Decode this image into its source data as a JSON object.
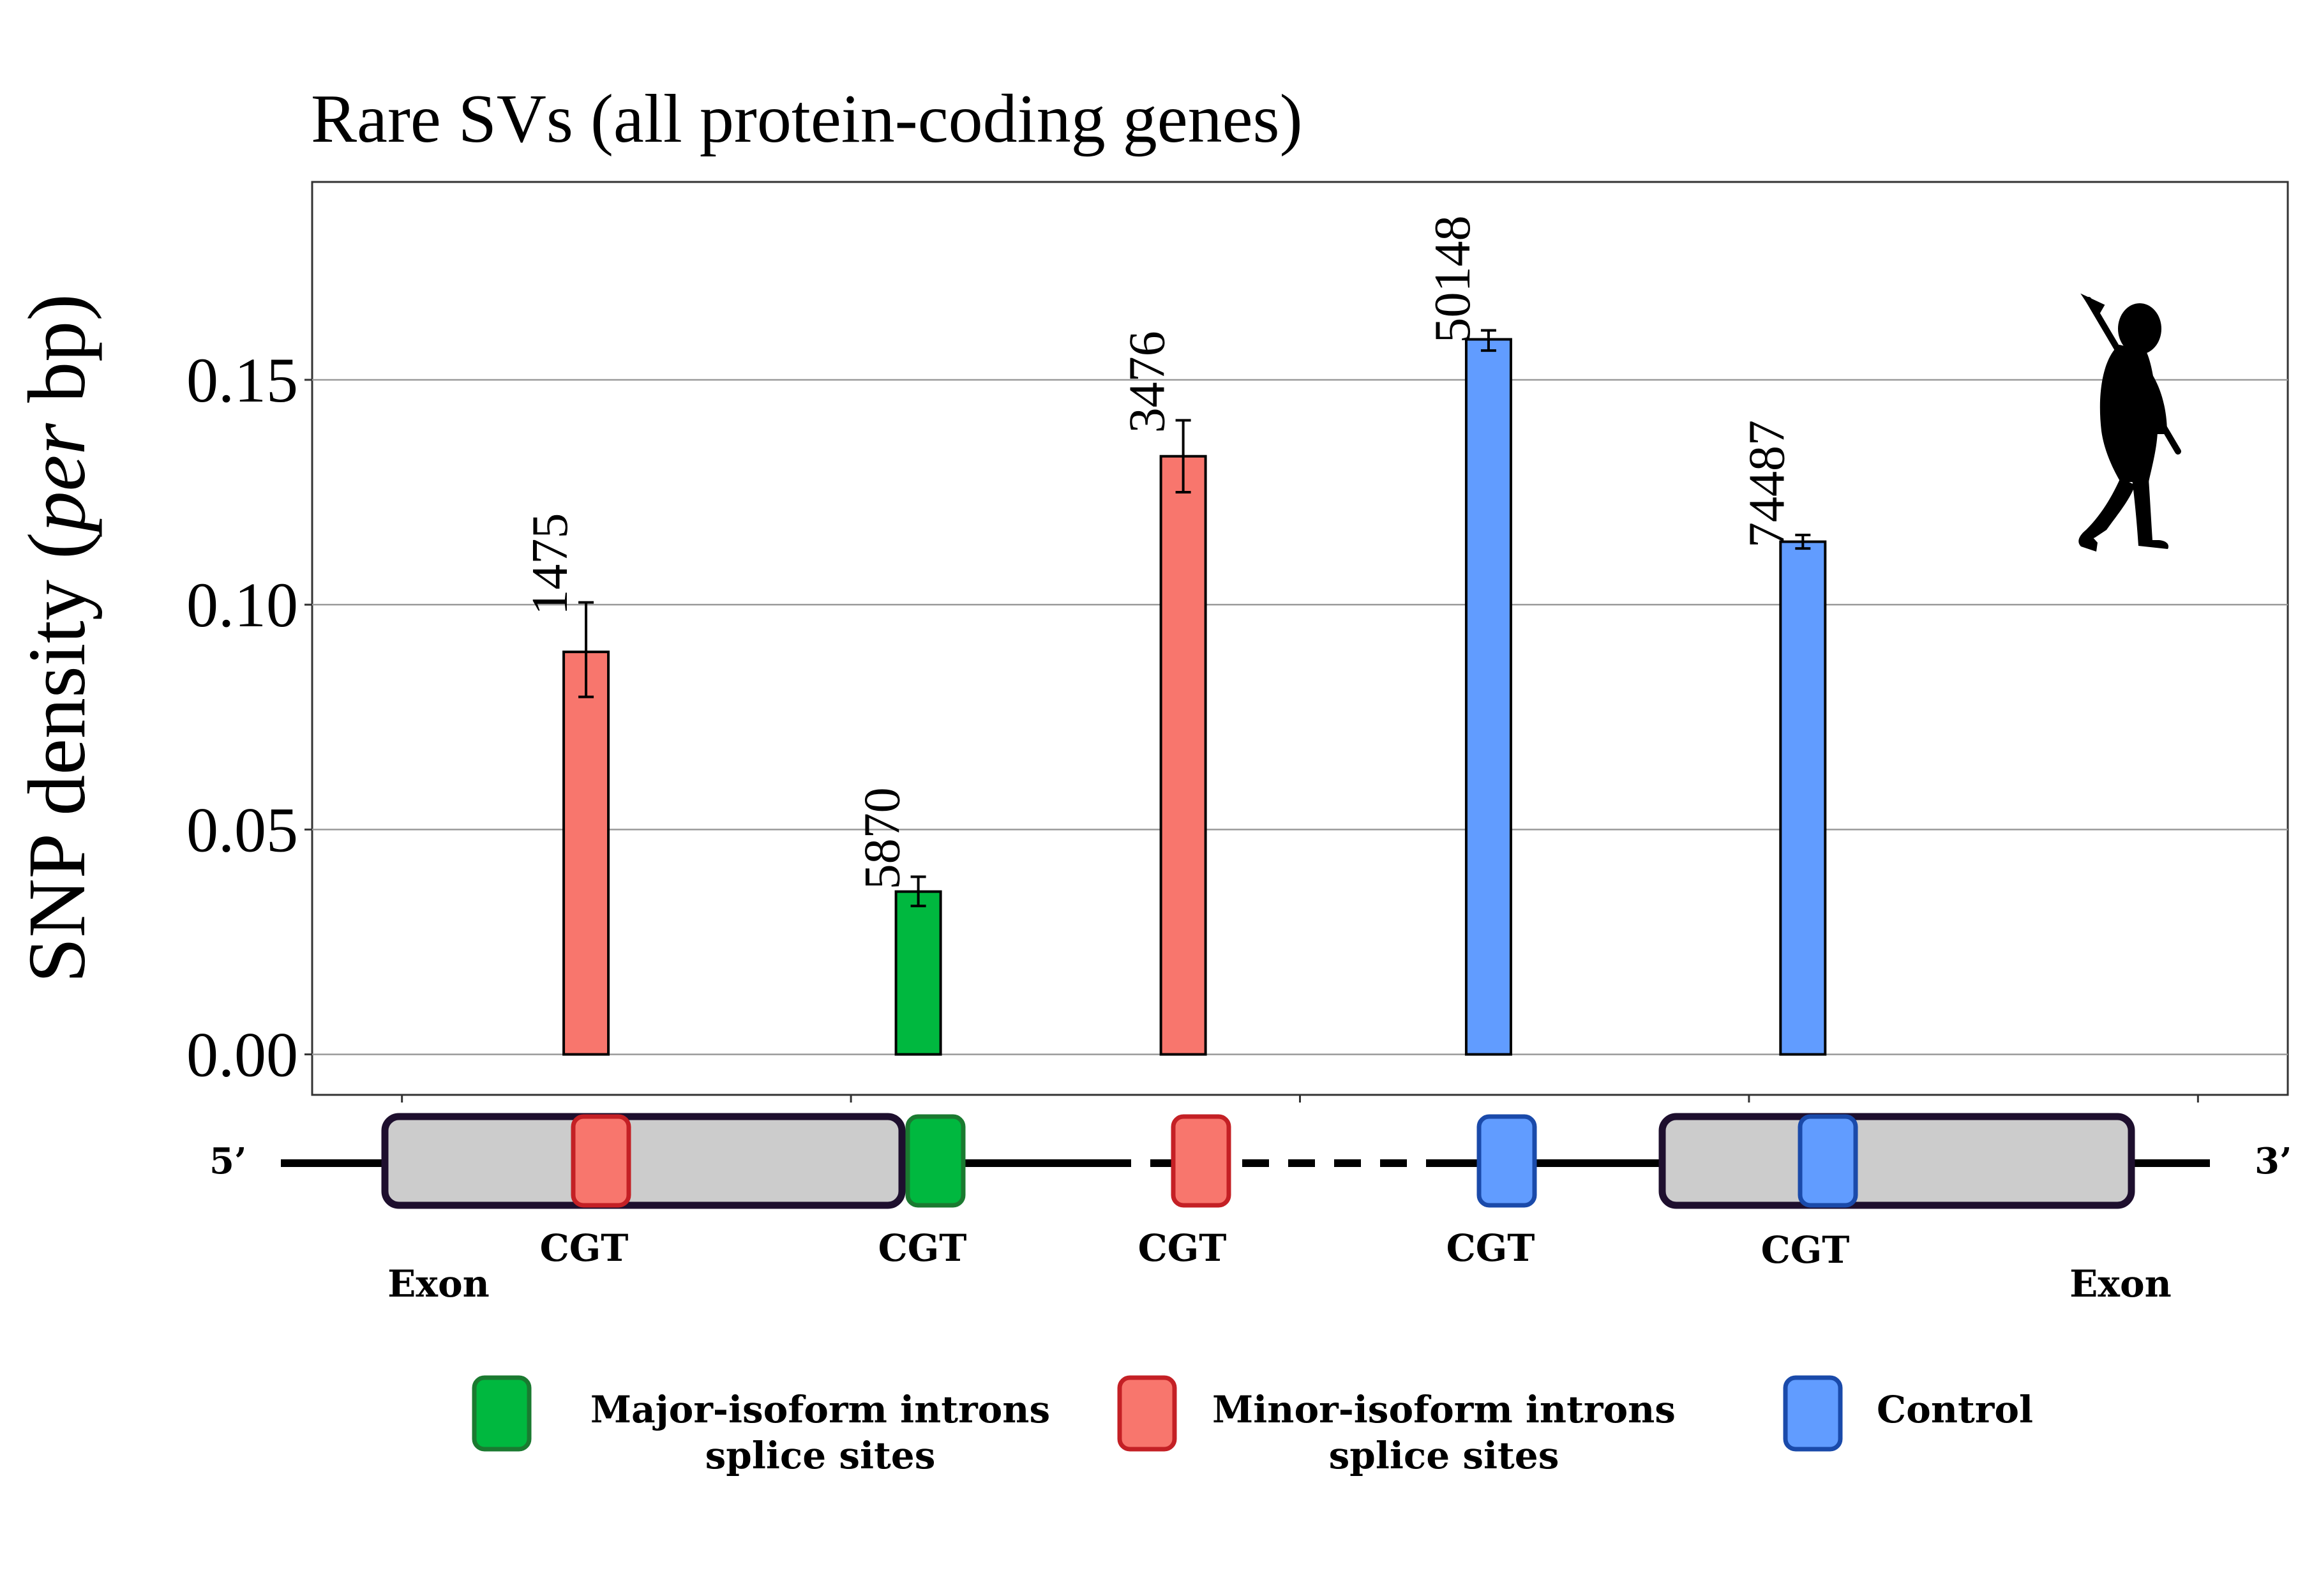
{
  "chart_data": {
    "type": "bar",
    "title": "Rare SVs (all protein-coding genes)",
    "ylabel_pre": "SNP density (",
    "ylabel_em": "per",
    "ylabel_post": " bp)",
    "ylim": [
      -0.009,
      0.194
    ],
    "yticks": [
      "0.00",
      "0.05",
      "0.10",
      "0.15"
    ],
    "ytick_values": [
      0,
      0.05,
      0.1,
      0.15
    ],
    "grid": true,
    "bars": [
      {
        "x": 0.41,
        "value": 0.0895,
        "err_low": 0.0795,
        "err_high": 0.1005,
        "n": "1475",
        "group": "minor"
      },
      {
        "x": 1.15,
        "value": 0.0362,
        "err_low": 0.033,
        "err_high": 0.0395,
        "n": "5870",
        "group": "major"
      },
      {
        "x": 1.74,
        "value": 0.133,
        "err_low": 0.125,
        "err_high": 0.141,
        "n": "3476",
        "group": "minor"
      },
      {
        "x": 2.42,
        "value": 0.159,
        "err_low": 0.1565,
        "err_high": 0.161,
        "n": "50148",
        "group": "control"
      },
      {
        "x": 3.12,
        "value": 0.114,
        "err_low": 0.1125,
        "err_high": 0.1155,
        "n": "74487",
        "group": "control"
      }
    ],
    "xlim": [
      -0.2,
      4.2
    ]
  },
  "colors": {
    "major": "#00b83f",
    "minor": "#f8766d",
    "control": "#619cff",
    "major_border": "#1a7a30",
    "minor_border": "#c42025",
    "control_border": "#1a4aaa",
    "exon_fill": "#cccccc",
    "exon_border": "#1e0f2e"
  },
  "diagram": {
    "five_prime": "5’",
    "three_prime": "3’",
    "exon_left": "Exon",
    "exon_right": "Exon",
    "site_labels": [
      "CGT",
      "CGT",
      "CGT",
      "CGT",
      "CGT"
    ]
  },
  "legend": {
    "major_line1": "Major-isoform introns",
    "major_line2": "splice sites",
    "minor_line1": "Minor-isoform introns",
    "minor_line2": "splice sites",
    "control": "Control"
  },
  "icons": {
    "silhouette": "hominin-silhouette-icon"
  }
}
